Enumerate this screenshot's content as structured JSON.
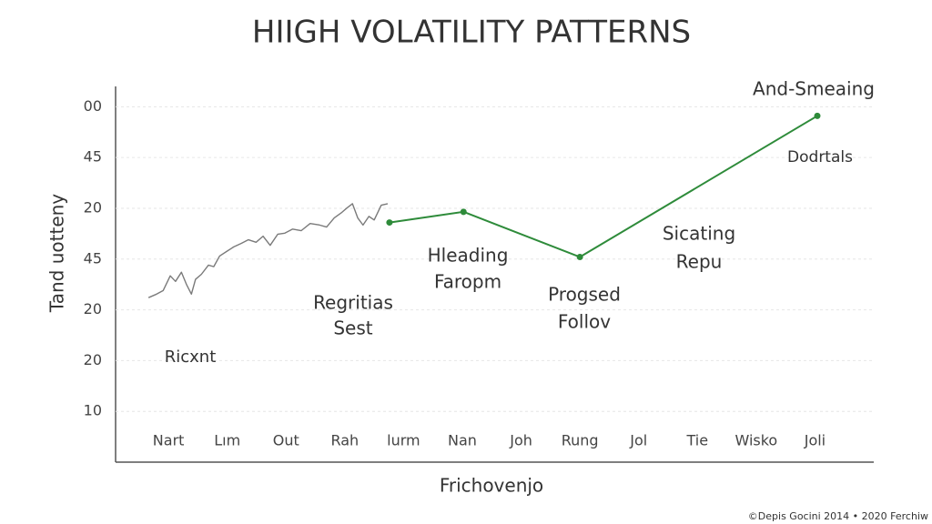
{
  "chart_data": {
    "type": "line",
    "title": "HIIGH VOLATILITY PATTERNS",
    "x_label": "Frichovenjo",
    "y_label": "Tand uotteny",
    "footer": "©Depis Gocini 2014 • 2020 Ferchiw",
    "categories": [
      "Nart",
      "Lım",
      "Out",
      "Rah",
      "lurm",
      "Nan",
      "Joh",
      "Rung",
      "Jol",
      "Tie",
      "Wisko",
      "Joli"
    ],
    "xlim": [
      -0.9,
      12
    ],
    "ylim": [
      -1,
      6.4
    ],
    "yticks": [
      {
        "value": 6,
        "label": "00"
      },
      {
        "value": 5,
        "label": "45"
      },
      {
        "value": 4,
        "label": "20"
      },
      {
        "value": 3,
        "label": "45"
      },
      {
        "value": 2,
        "label": "20"
      },
      {
        "value": 1,
        "label": "20"
      },
      {
        "value": 0,
        "label": "10"
      }
    ],
    "grid": true,
    "series": [
      {
        "color": "#7a7a7a",
        "x": [
          -0.34,
          -0.22,
          -0.09,
          0.03,
          0.12,
          0.22,
          0.31,
          0.39,
          0.46,
          0.56,
          0.68,
          0.77,
          0.87,
          0.99,
          1.11,
          1.24,
          1.36,
          1.49,
          1.61,
          1.73,
          1.86,
          1.98,
          2.11,
          2.26,
          2.41,
          2.57,
          2.69,
          2.82,
          2.94,
          3.03,
          3.13,
          3.22,
          3.31,
          3.41,
          3.5,
          3.62,
          3.73
        ],
        "values": [
          2.24,
          2.3,
          2.38,
          2.67,
          2.56,
          2.74,
          2.49,
          2.31,
          2.6,
          2.7,
          2.88,
          2.85,
          3.06,
          3.15,
          3.24,
          3.31,
          3.38,
          3.33,
          3.45,
          3.27,
          3.49,
          3.51,
          3.59,
          3.56,
          3.7,
          3.67,
          3.63,
          3.81,
          3.91,
          4.0,
          4.09,
          3.81,
          3.67,
          3.84,
          3.77,
          4.06,
          4.09
        ]
      },
      {
        "color": "#2e8b3a",
        "markers": true,
        "x": [
          3.76,
          5.02,
          7.0,
          11.04
        ],
        "values": [
          3.72,
          3.93,
          3.04,
          5.82
        ]
      }
    ],
    "annotations": [
      {
        "text": "And-Smeaing",
        "color": "#d9404a"
      },
      {
        "text": "Dodrtals",
        "color": "#2e8b3a"
      },
      {
        "text": "Hleading",
        "color": "#d9404a"
      },
      {
        "text": "Faropm",
        "color": "#d9404a"
      },
      {
        "text": "Regritias",
        "color": "#d9404a"
      },
      {
        "text": "Sest",
        "color": "#d9404a"
      },
      {
        "text": "Progsed",
        "color": "#d9404a"
      },
      {
        "text": "Follov",
        "color": "#d9404a"
      },
      {
        "text": "Sicating",
        "color": "#d9404a"
      },
      {
        "text": "Repu",
        "color": "#d9404a"
      },
      {
        "text": "Ricxnt",
        "color": "#444444"
      }
    ]
  }
}
